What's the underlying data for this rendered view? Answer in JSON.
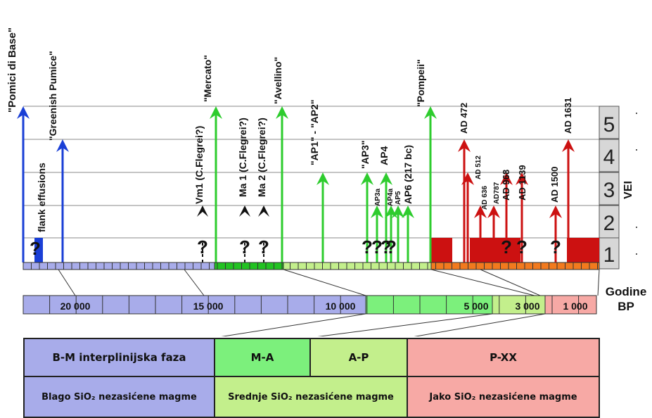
{
  "chart_data": {
    "type": "timeline",
    "y_axis_label": "VEI",
    "y_ticks": [
      "1",
      "2",
      "3",
      "4",
      "5"
    ],
    "x_axis_label_line1": "Godine",
    "x_axis_label_line2": "BP",
    "x_tick_labels": [
      "20 000",
      "15 000",
      "10 000",
      "5 000",
      "3 000",
      "1 000"
    ],
    "events": [
      {
        "label": "\"Pomici di Base\"",
        "vei": 5,
        "color": "#1a3fd6"
      },
      {
        "label": "\"Greenish Pumice\"",
        "vei": 4,
        "color": "#1a3fd6"
      },
      {
        "label": "flank effusions",
        "vei": 1,
        "color": "#1a3fd6"
      },
      {
        "label": "Vm1 (C.Flegrei?)",
        "vei": 2,
        "color": "#000000"
      },
      {
        "label": "\"Mercato\"",
        "vei": 5,
        "color": "#2ecc2e"
      },
      {
        "label": "Ma 1 (C.Flegrei?)",
        "vei": 2,
        "color": "#000000"
      },
      {
        "label": "Ma 2 (C.Flegrei?)",
        "vei": 2,
        "color": "#000000"
      },
      {
        "label": "\"Avellino\"",
        "vei": 5,
        "color": "#2ecc2e"
      },
      {
        "label": "\"AP1\" - \"AP2\"",
        "vei": 3,
        "color": "#2ecc2e"
      },
      {
        "label": "\"AP3\"",
        "vei": 3,
        "color": "#2ecc2e"
      },
      {
        "label": "AP3a",
        "vei": 2,
        "color": "#2ecc2e"
      },
      {
        "label": "AP4",
        "vei": 3,
        "color": "#2ecc2e"
      },
      {
        "label": "AP4a",
        "vei": 2,
        "color": "#2ecc2e"
      },
      {
        "label": "AP5",
        "vei": 2,
        "color": "#2ecc2e"
      },
      {
        "label": "AP6 (217 bc)",
        "vei": 2,
        "color": "#2ecc2e"
      },
      {
        "label": "\"Pompeii\"",
        "vei": 5,
        "color": "#2ecc2e"
      },
      {
        "label": "AD 472",
        "vei": 4,
        "color": "#cc1111"
      },
      {
        "label": "AD 512",
        "vei": 3,
        "color": "#cc1111"
      },
      {
        "label": "AD 636",
        "vei": 2,
        "color": "#cc1111"
      },
      {
        "label": "AD787",
        "vei": 2,
        "color": "#cc1111"
      },
      {
        "label": "AD 968",
        "vei": 3,
        "color": "#cc1111"
      },
      {
        "label": "AD 1139",
        "vei": 3,
        "color": "#cc1111"
      },
      {
        "label": "AD 1500",
        "vei": 2,
        "color": "#cc1111"
      },
      {
        "label": "AD 1631",
        "vei": 4,
        "color": "#cc1111"
      }
    ],
    "question_mark": "?",
    "phases": [
      {
        "name": "B-M interplinijska faza",
        "desc": "Blago SiO₂ nezasićene magme",
        "color": "#a8acea"
      },
      {
        "name": "M-A",
        "desc": "Srednje SiO₂ nezasićene magme",
        "color": "#7cf07c"
      },
      {
        "name": "A-P",
        "desc": "",
        "color": "#c3ef8c"
      },
      {
        "name": "P-XX",
        "desc": "Jako SiO₂ nezasićene magme",
        "color": "#f7a9a5"
      }
    ]
  }
}
